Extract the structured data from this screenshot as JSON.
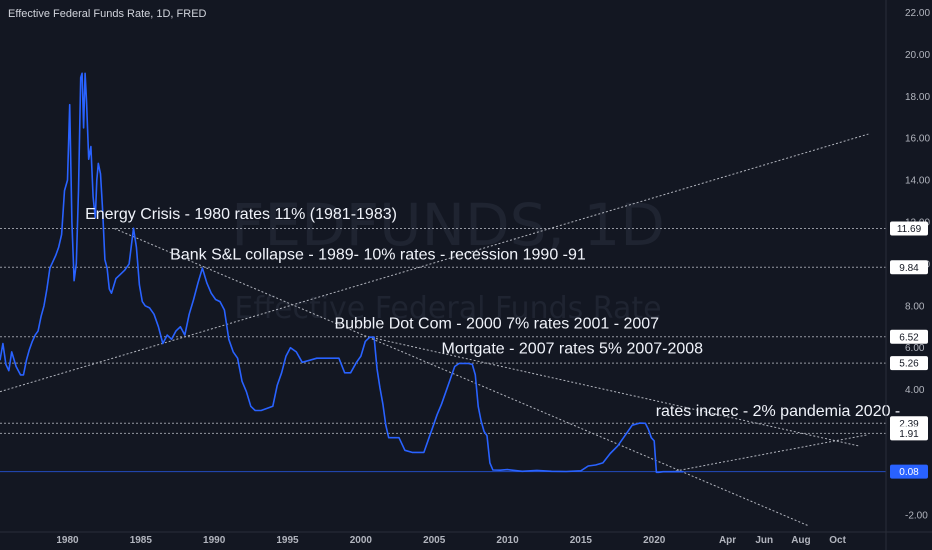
{
  "chart_title": "Effective Federal Funds Rate, 1D, FRED",
  "watermark": {
    "symbol": "FEDFUNDS, 1D",
    "name": "Effective Federal Funds Rate"
  },
  "colors": {
    "background": "#131722",
    "series": "#2962ff",
    "text": "#b2b5be",
    "label_bg": "#ffffff",
    "current_bg": "#2962ff"
  },
  "chart_data": {
    "type": "line",
    "ylim": [
      -2.8,
      22.6
    ],
    "y_ticks": [
      "22.00",
      "20.00",
      "18.00",
      "16.00",
      "14.00",
      "12.00",
      "10.00",
      "8.00",
      "6.00",
      "4.00",
      "2.00",
      "0.00",
      "-2.00"
    ],
    "x_ticks": [
      "1980",
      "1985",
      "1990",
      "1995",
      "2000",
      "2005",
      "2010",
      "2015",
      "2020",
      "Apr",
      "Jun",
      "Aug",
      "Oct"
    ],
    "x_tick_years": [
      1980,
      1985,
      1990,
      1995,
      2000,
      2005,
      2010,
      2015,
      2020,
      2025,
      2027.5,
      2030,
      2032.5
    ],
    "xlim": [
      1975.4,
      2035.8
    ],
    "series": [
      {
        "x": [
          1975.4,
          1975.6,
          1975.8,
          1976.0,
          1976.2,
          1976.5,
          1976.8,
          1977.0,
          1977.2,
          1977.4,
          1977.6,
          1977.8,
          1978.0,
          1978.2,
          1978.4,
          1978.6,
          1978.8,
          1979.0,
          1979.2,
          1979.4,
          1979.6,
          1979.8,
          1980.0,
          1980.15,
          1980.3,
          1980.45,
          1980.6,
          1980.75,
          1980.9,
          1981.0,
          1981.1,
          1981.2,
          1981.3,
          1981.45,
          1981.6,
          1981.75,
          1981.9,
          1982.0,
          1982.1,
          1982.25,
          1982.4,
          1982.55,
          1982.7,
          1982.85,
          1983.0,
          1983.3,
          1983.6,
          1983.9,
          1984.2,
          1984.5,
          1984.7,
          1984.9,
          1985.1,
          1985.3,
          1985.6,
          1985.9,
          1986.2,
          1986.5,
          1986.8,
          1987.1,
          1987.4,
          1987.7,
          1988.0,
          1988.3,
          1988.6,
          1988.9,
          1989.2,
          1989.5,
          1989.8,
          1990.1,
          1990.4,
          1990.7,
          1991.0,
          1991.3,
          1991.6,
          1991.9,
          1992.2,
          1992.5,
          1992.8,
          1993.2,
          1993.6,
          1994.0,
          1994.3,
          1994.6,
          1994.9,
          1995.2,
          1995.6,
          1996.0,
          1996.5,
          1997.0,
          1997.5,
          1998.0,
          1998.5,
          1998.9,
          1999.3,
          1999.7,
          2000.0,
          2000.3,
          2000.6,
          2000.9,
          2001.1,
          2001.3,
          2001.5,
          2001.7,
          2001.9,
          2002.2,
          2002.6,
          2003.0,
          2003.5,
          2003.9,
          2004.3,
          2004.6,
          2004.9,
          2005.2,
          2005.5,
          2005.8,
          2006.1,
          2006.4,
          2006.7,
          2007.0,
          2007.3,
          2007.6,
          2007.8,
          2008.0,
          2008.2,
          2008.4,
          2008.6,
          2008.8,
          2009.0,
          2009.5,
          2010.0,
          2011.0,
          2012.0,
          2013.0,
          2014.0,
          2015.0,
          2015.5,
          2016.0,
          2016.5,
          2017.0,
          2017.5,
          2018.0,
          2018.5,
          2019.0,
          2019.4,
          2019.6,
          2019.8,
          2020.0,
          2020.15,
          2020.3,
          2020.6,
          2021.0,
          2021.5,
          2022.0
        ],
        "y": [
          5.4,
          6.2,
          5.2,
          4.9,
          5.8,
          5.1,
          4.7,
          4.7,
          5.4,
          5.9,
          6.3,
          6.6,
          6.8,
          7.5,
          8.0,
          8.8,
          9.8,
          10.1,
          10.4,
          10.8,
          11.4,
          13.5,
          14.0,
          17.6,
          12.0,
          9.2,
          10.0,
          13.5,
          18.9,
          19.1,
          16.5,
          19.1,
          17.8,
          15.0,
          15.6,
          13.2,
          12.2,
          14.0,
          14.8,
          14.3,
          12.5,
          10.2,
          9.8,
          8.8,
          8.6,
          9.3,
          9.5,
          9.7,
          10.0,
          11.7,
          10.8,
          9.0,
          8.2,
          8.0,
          7.9,
          7.6,
          7.0,
          6.2,
          6.6,
          6.4,
          6.8,
          7.0,
          6.6,
          7.6,
          8.3,
          9.1,
          9.8,
          9.1,
          8.6,
          8.3,
          8.2,
          7.8,
          6.4,
          5.8,
          5.5,
          4.4,
          3.9,
          3.2,
          3.0,
          3.0,
          3.1,
          3.2,
          4.2,
          4.8,
          5.6,
          6.0,
          5.8,
          5.3,
          5.4,
          5.5,
          5.5,
          5.5,
          5.5,
          4.8,
          4.8,
          5.3,
          5.6,
          6.3,
          6.5,
          6.5,
          5.0,
          4.1,
          3.3,
          2.3,
          1.7,
          1.7,
          1.7,
          1.1,
          1.0,
          1.0,
          1.0,
          1.6,
          2.2,
          2.8,
          3.3,
          3.9,
          4.5,
          5.1,
          5.25,
          5.25,
          5.25,
          5.2,
          4.7,
          3.2,
          2.5,
          2.0,
          1.8,
          0.5,
          0.16,
          0.15,
          0.18,
          0.1,
          0.14,
          0.1,
          0.09,
          0.12,
          0.35,
          0.4,
          0.5,
          0.95,
          1.3,
          1.8,
          2.3,
          2.4,
          2.39,
          2.1,
          1.7,
          1.55,
          0.05,
          0.05,
          0.08,
          0.08,
          0.08,
          0.08
        ]
      }
    ],
    "hlines": [
      {
        "label": "11.69",
        "value": 11.69
      },
      {
        "label": "9.84",
        "value": 9.84
      },
      {
        "label": "6.52",
        "value": 6.52
      },
      {
        "label": "5.26",
        "value": 5.26
      },
      {
        "label": "2.39",
        "value": 2.39
      },
      {
        "label": "1.91",
        "value": 1.91
      }
    ],
    "current_value": {
      "label": "0.08",
      "value": 0.08
    },
    "trendlines": [
      {
        "x1": 1975.4,
        "y1": 3.9,
        "x2": 2034.6,
        "y2": 16.2
      },
      {
        "x1": 1983.2,
        "y1": 11.69,
        "x2": 2030.5,
        "y2": -2.5
      },
      {
        "x1": 2000.5,
        "y1": 6.52,
        "x2": 2034.0,
        "y2": 1.3
      },
      {
        "x1": 2021.2,
        "y1": 0.08,
        "x2": 2034.6,
        "y2": 1.85
      }
    ],
    "annotations": [
      {
        "text": "Energy Crisis - 1980 rates 11%   (1981-1983)",
        "x": 1981.2,
        "y": 12.14
      },
      {
        "text": "Bank S&L collapse - 1989-  10% rates - recession 1990 -91",
        "x": 1987.0,
        "y": 10.22
      },
      {
        "text": "Bubble Dot Com - 2000  7% rates 2001 - 2007",
        "x": 1998.2,
        "y": 6.92
      },
      {
        "text": "Mortgate - 2007   rates 5%   2007-2008",
        "x": 2005.5,
        "y": 5.72
      },
      {
        "text": "rates increc - 2%  pandemia   2020 -",
        "x": 2020.1,
        "y": 2.74
      }
    ]
  }
}
